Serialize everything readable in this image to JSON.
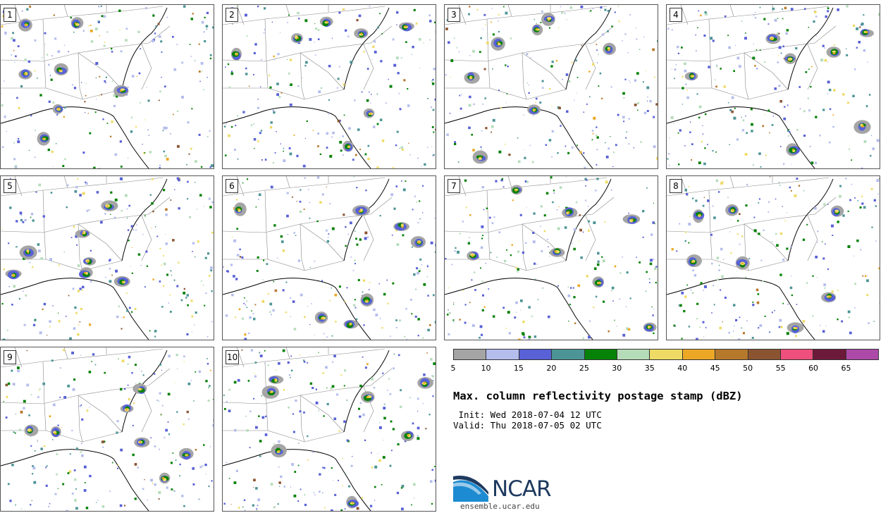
{
  "panels": [
    {
      "label": "1"
    },
    {
      "label": "2"
    },
    {
      "label": "3"
    },
    {
      "label": "4"
    },
    {
      "label": "5"
    },
    {
      "label": "6"
    },
    {
      "label": "7"
    },
    {
      "label": "8"
    },
    {
      "label": "9"
    },
    {
      "label": "10"
    }
  ],
  "colorbar": {
    "colors": [
      "#a5a5a5",
      "#b4bdec",
      "#5861d6",
      "#4d9496",
      "#078208",
      "#b5dcb9",
      "#eedb66",
      "#eca825",
      "#b6782b",
      "#8a5431",
      "#ef4f7c",
      "#6d1a3a",
      "#ad4aa9"
    ],
    "ticks": [
      "5",
      "10",
      "15",
      "20",
      "25",
      "30",
      "35",
      "40",
      "45",
      "50",
      "55",
      "60",
      "65"
    ]
  },
  "title": "Max. column reflectivity postage stamp (dBZ)",
  "init": " Init: Wed 2018-07-04 12 UTC",
  "valid": "Valid: Thu 2018-07-05 02 UTC",
  "logo": {
    "text": "NCAR",
    "url": "ensemble.ucar.edu",
    "color": "#1e3a5f"
  }
}
